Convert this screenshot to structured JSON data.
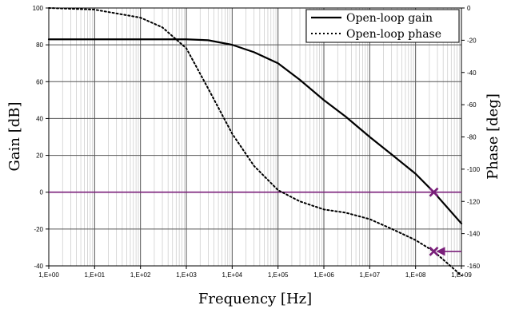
{
  "chart_data": {
    "type": "line",
    "title": "",
    "xlabel": "Frequency [Hz]",
    "ylabel": "Gain [dB]",
    "y2label": "Phase [deg]",
    "xscale": "log",
    "xlim": [
      1,
      1000000000
    ],
    "ylim": [
      -40,
      100
    ],
    "y2lim": [
      -160,
      0
    ],
    "grid": true,
    "legend_position": "top-right",
    "x_tick_labels": [
      "1,E+00",
      "1,E+01",
      "1,E+02",
      "1,E+03",
      "1,E+04",
      "1,E+05",
      "1,E+06",
      "1,E+07",
      "1,E+08",
      "1,E+09"
    ],
    "y_tick_labels": [
      "100",
      "80",
      "60",
      "40",
      "20",
      "0",
      "-20",
      "-40"
    ],
    "y2_tick_labels": [
      "0",
      "-20",
      "-40",
      "-60",
      "-80",
      "-100",
      "-120",
      "-140",
      "-160"
    ],
    "series": [
      {
        "name": "Open-loop gain",
        "axis": "left",
        "style": "solid",
        "color": "#000000",
        "x": [
          1,
          10,
          100,
          1000,
          3000,
          10000,
          30000,
          100000,
          300000,
          1000000,
          3000000,
          10000000,
          30000000,
          100000000,
          250000000,
          1000000000
        ],
        "y": [
          83,
          83,
          83,
          83,
          82.5,
          80,
          76,
          70,
          61,
          50,
          41,
          30,
          20.5,
          10,
          0,
          -17
        ]
      },
      {
        "name": "Open-loop phase",
        "axis": "right",
        "style": "dotted",
        "color": "#000000",
        "x": [
          1,
          10,
          100,
          300,
          1000,
          3000,
          10000,
          30000,
          100000,
          300000,
          1000000,
          3000000,
          10000000,
          30000000,
          100000000,
          250000000,
          1000000000
        ],
        "y": [
          0,
          -1,
          -6,
          -12,
          -25,
          -50,
          -78,
          -98,
          -113,
          -120,
          -125,
          -127,
          -131,
          -137,
          -144,
          -151,
          -166
        ]
      }
    ],
    "annotations": [
      {
        "type": "hline",
        "axis": "left",
        "y": 0,
        "color": "#7a1f7a"
      },
      {
        "type": "marker",
        "shape": "x",
        "axis": "left",
        "x": 250000000,
        "y": 0,
        "color": "#7a1f7a"
      },
      {
        "type": "marker",
        "shape": "x",
        "axis": "right",
        "x": 250000000,
        "y": -151,
        "color": "#7a1f7a"
      },
      {
        "type": "arrow",
        "axis": "right",
        "from_x": 1000000000,
        "to_x": 250000000,
        "y": -151,
        "color": "#7a1f7a"
      }
    ]
  }
}
